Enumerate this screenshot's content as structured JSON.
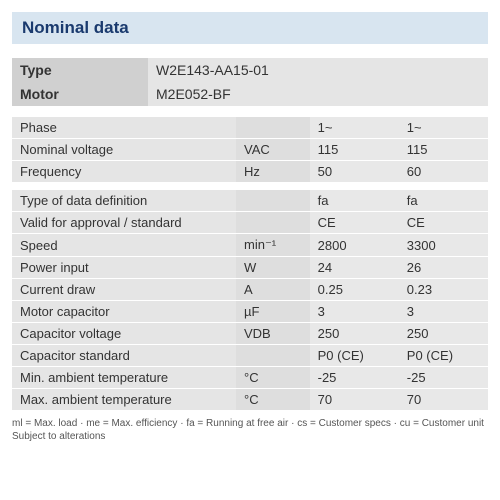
{
  "title": "Nominal data",
  "header": [
    {
      "label": "Type",
      "value": "W2E143-AA15-01"
    },
    {
      "label": "Motor",
      "value": "M2E052-BF"
    }
  ],
  "rows_group1": [
    {
      "param": "Phase",
      "unit": "",
      "v1": "1~",
      "v2": "1~"
    },
    {
      "param": "Nominal voltage",
      "unit": "VAC",
      "v1": "115",
      "v2": "115"
    },
    {
      "param": "Frequency",
      "unit": "Hz",
      "v1": "50",
      "v2": "60"
    }
  ],
  "rows_group2": [
    {
      "param": "Type of data definition",
      "unit": "",
      "v1": "fa",
      "v2": "fa"
    },
    {
      "param": "Valid for approval / standard",
      "unit": "",
      "v1": "CE",
      "v2": "CE"
    },
    {
      "param": "Speed",
      "unit": "min⁻¹",
      "v1": "2800",
      "v2": "3300"
    },
    {
      "param": "Power input",
      "unit": "W",
      "v1": "24",
      "v2": "26"
    },
    {
      "param": "Current draw",
      "unit": "A",
      "v1": "0.25",
      "v2": "0.23"
    },
    {
      "param": "Motor capacitor",
      "unit": "µF",
      "v1": "3",
      "v2": "3"
    },
    {
      "param": "Capacitor voltage",
      "unit": "VDB",
      "v1": "250",
      "v2": "250"
    },
    {
      "param": "Capacitor standard",
      "unit": "",
      "v1": "P0 (CE)",
      "v2": "P0 (CE)"
    },
    {
      "param": "Min. ambient temperature",
      "unit": "°C",
      "v1": "-25",
      "v2": "-25"
    },
    {
      "param": "Max. ambient temperature",
      "unit": "°C",
      "v1": "70",
      "v2": "70"
    }
  ],
  "footnote_line1": "ml = Max. load · me = Max. efficiency · fa = Running at free air · cs = Customer specs · cu = Customer unit",
  "footnote_line2": "Subject to alterations",
  "colors": {
    "title_bg": "#d8e5f0",
    "title_text": "#1a3a6e",
    "row_bg": "#e8e8e8",
    "unit_bg": "#dedede",
    "header_label_bg": "#d0d0d0",
    "header_value_bg": "#e5e5e5",
    "text": "#333333"
  }
}
